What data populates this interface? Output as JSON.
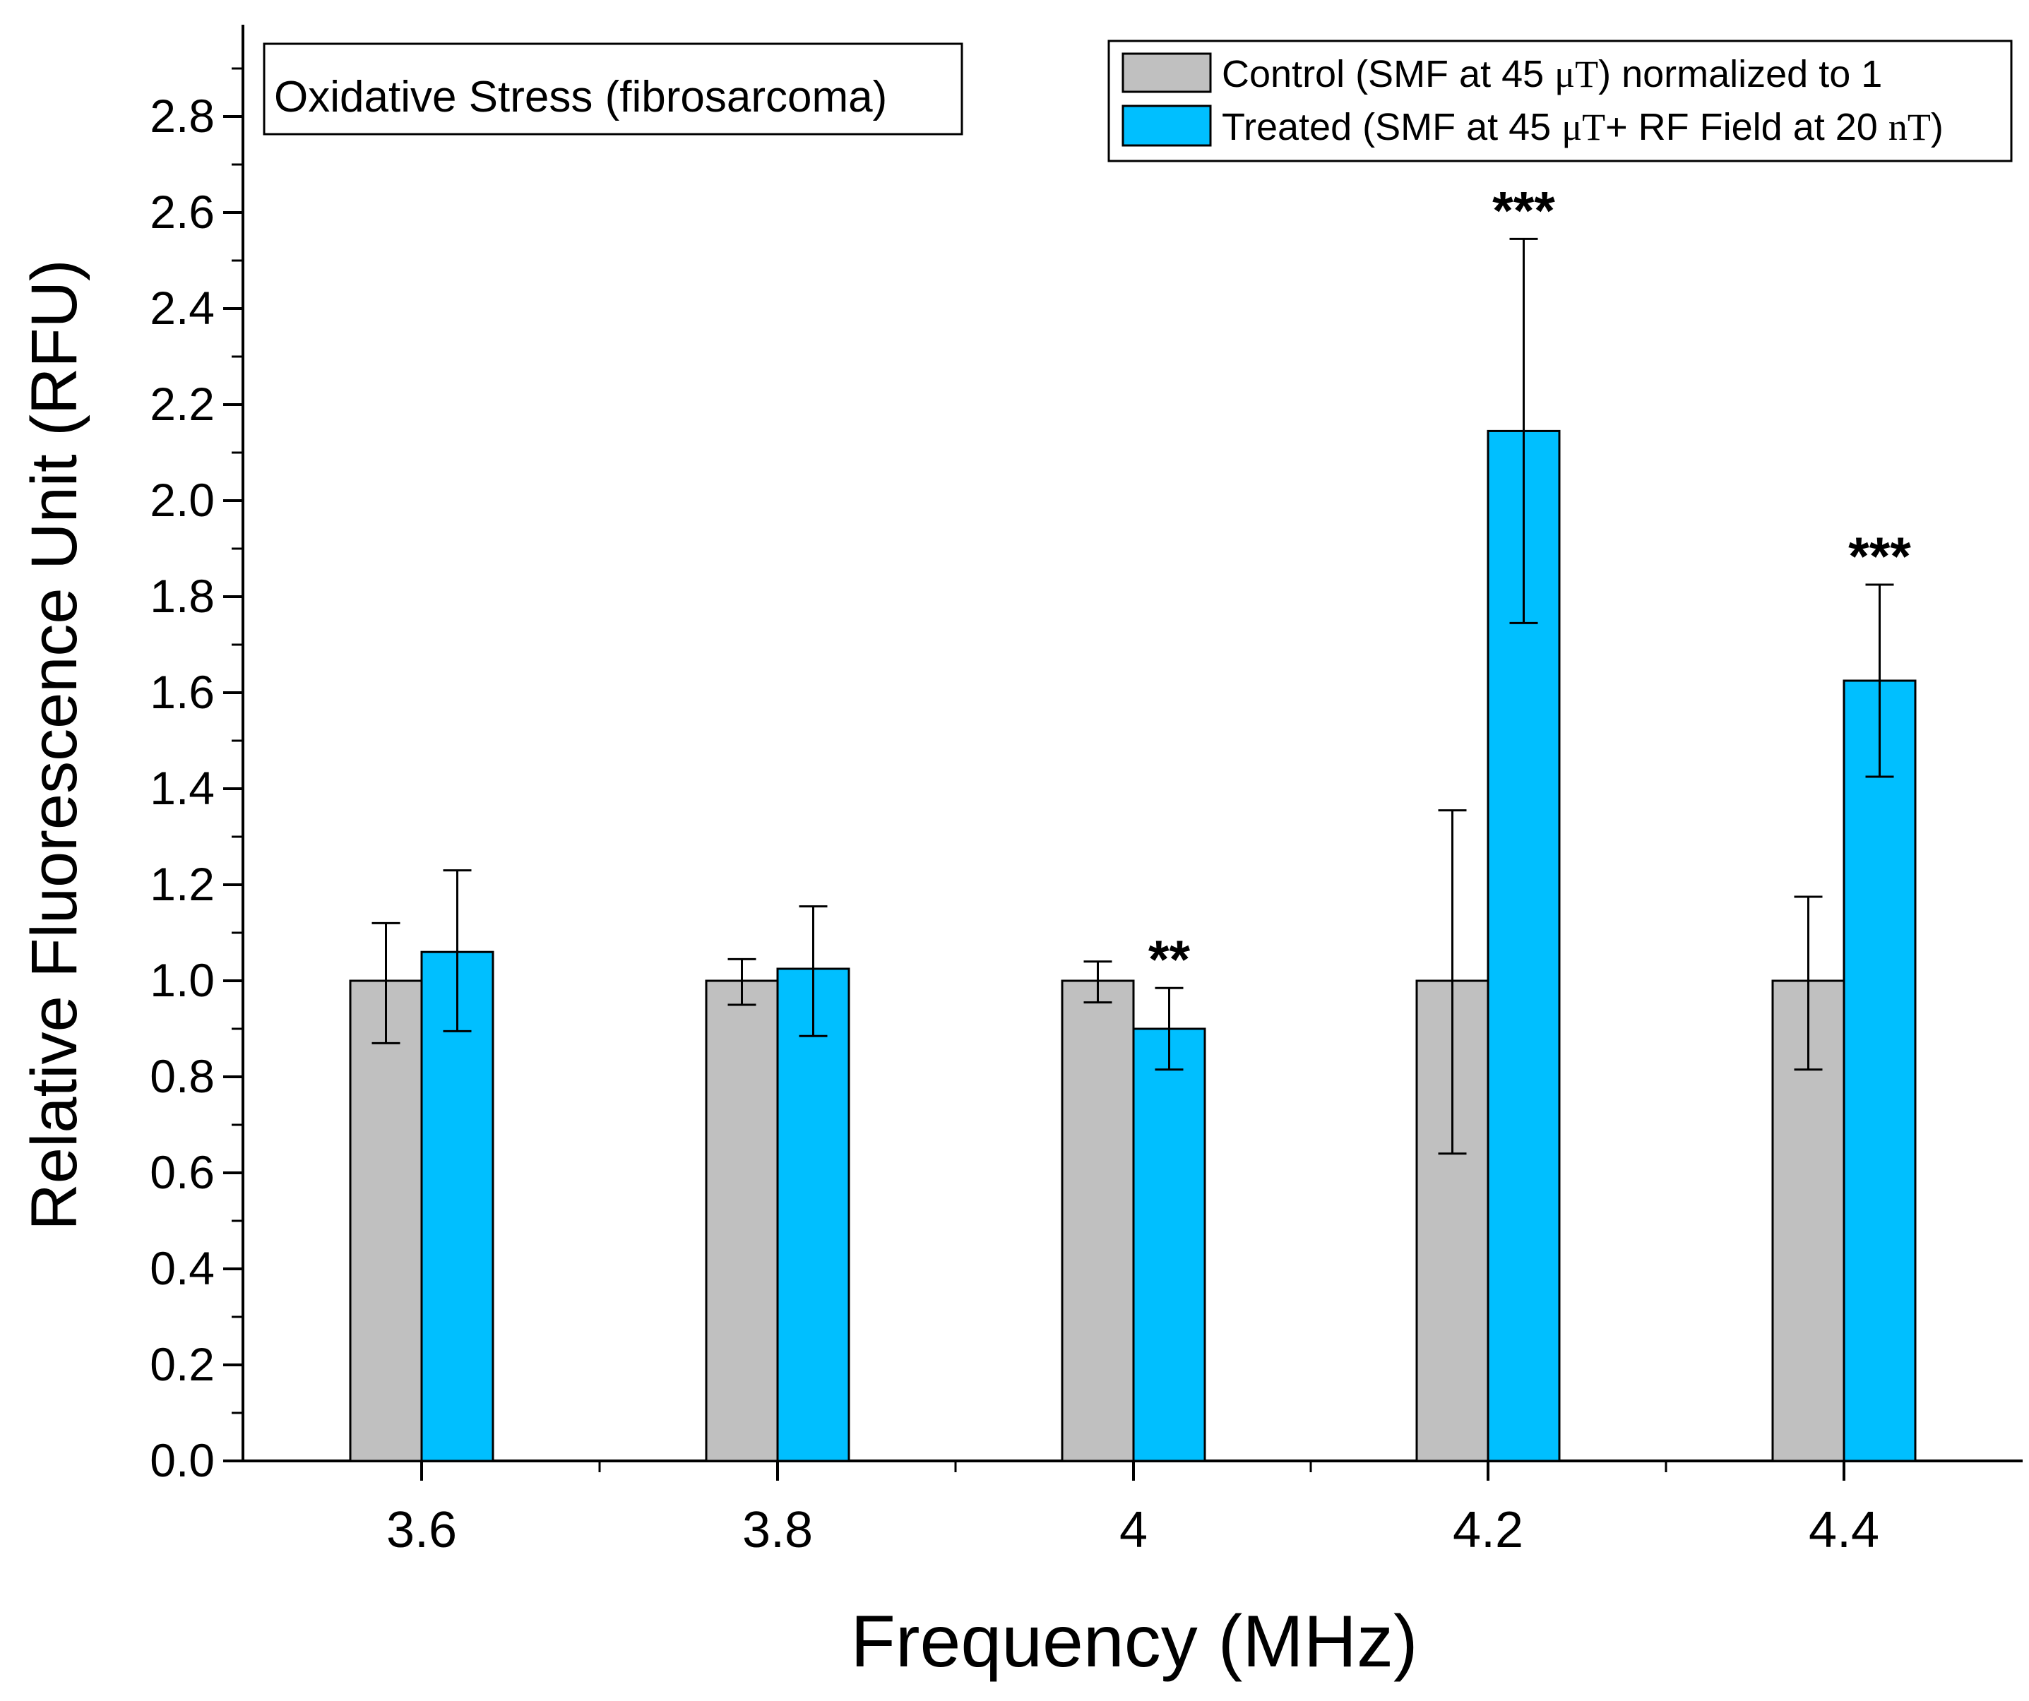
{
  "chart_data": {
    "type": "bar",
    "title": "Oxidative Stress (fibrosarcoma)",
    "xlabel": "Frequency (MHz)",
    "ylabel": "Relative Fluorescence Unit (RFU)",
    "categories": [
      "3.6",
      "3.8",
      "4",
      "4.2",
      "4.4"
    ],
    "ylim": [
      0,
      2.98
    ],
    "yticks": [
      0.0,
      0.2,
      0.4,
      0.6,
      0.8,
      1.0,
      1.2,
      1.4,
      1.6,
      1.8,
      2.0,
      2.2,
      2.4,
      2.6,
      2.8
    ],
    "ytick_labels": [
      "0.0",
      "0.2",
      "0.4",
      "0.6",
      "0.8",
      "1.0",
      "1.2",
      "1.4",
      "1.6",
      "1.8",
      "2.0",
      "2.2",
      "2.4",
      "2.6",
      "2.8"
    ],
    "series": [
      {
        "name": "Control",
        "legend_text": "Control  (SMF at 45 ",
        "legend_unit": "μT",
        "legend_tail": ") normalized to 1",
        "color": "#c0c0c0",
        "values": [
          1.0,
          1.0,
          1.0,
          1.0,
          1.0
        ],
        "err_low": [
          0.87,
          0.95,
          0.955,
          0.64,
          0.815
        ],
        "err_high": [
          1.12,
          1.045,
          1.04,
          1.355,
          1.175
        ]
      },
      {
        "name": "Treated",
        "legend_text": "Treated (SMF at 45 ",
        "legend_unit": "μT",
        "legend_tail": "+ RF Field at 20 ",
        "legend_unit2": "nT",
        "legend_tail2": ")",
        "color": "#00bfff",
        "values": [
          1.06,
          1.025,
          0.9,
          2.145,
          1.625
        ],
        "err_low": [
          0.895,
          0.885,
          0.815,
          1.745,
          1.425
        ],
        "err_high": [
          1.23,
          1.155,
          0.985,
          2.545,
          1.825
        ]
      }
    ],
    "annotations": [
      {
        "category": "4",
        "series": "Treated",
        "text": "**"
      },
      {
        "category": "4.2",
        "series": "Treated",
        "text": "***"
      },
      {
        "category": "4.4",
        "series": "Treated",
        "text": "***"
      }
    ],
    "grid": false,
    "legend_position": "top-right"
  }
}
